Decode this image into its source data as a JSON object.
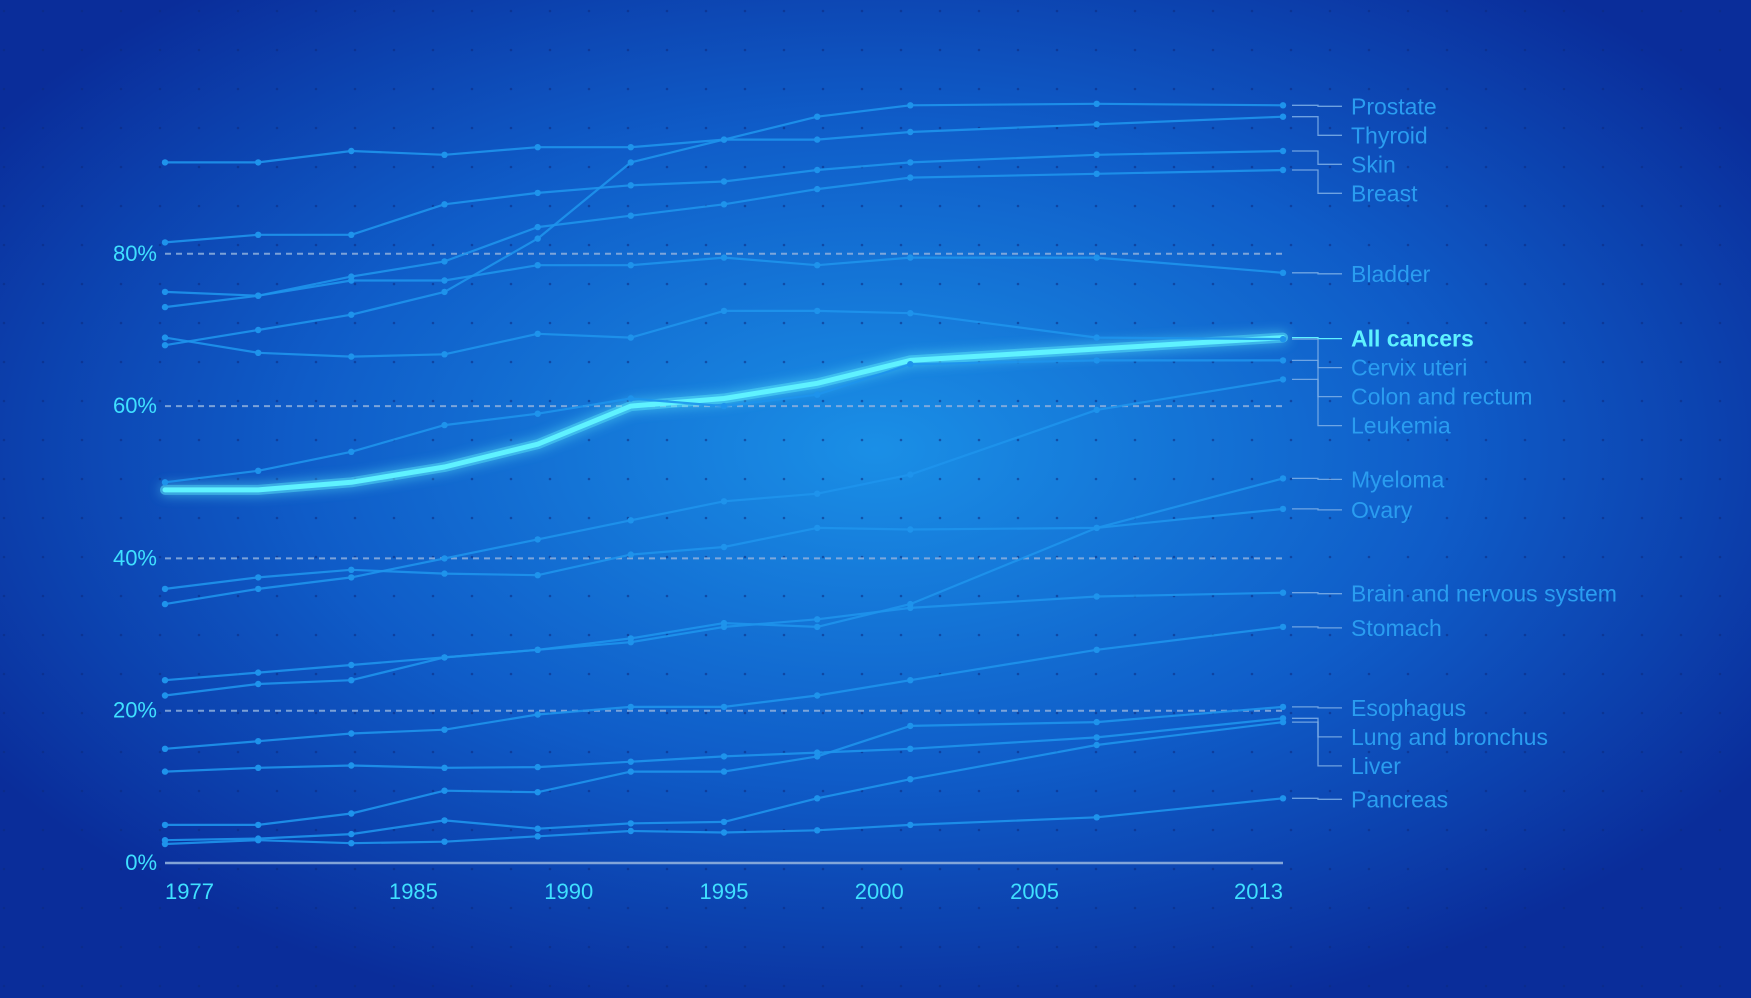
{
  "colors": {
    "bg_center": "#1a8fe6",
    "bg_edge": "#0a2d9a",
    "series": "#1e93ec",
    "label": "#2a9df0",
    "highlight": "#5ff2ff",
    "tick": "#3fe0ff",
    "grid": "#8fb0dd"
  },
  "chart_data": {
    "type": "line",
    "title": "",
    "xlabel": "",
    "ylabel": "",
    "x_ticks": [
      1977,
      1985,
      1990,
      1995,
      2000,
      2005,
      2013
    ],
    "x_tick_labels": [
      "1977",
      "1985",
      "1990",
      "1995",
      "2000",
      "2005",
      "2013"
    ],
    "y_ticks": [
      0,
      20,
      40,
      60,
      80
    ],
    "y_tick_labels": [
      "0%",
      "20%",
      "40%",
      "60%",
      "80%"
    ],
    "xlim": [
      1977,
      2013
    ],
    "ylim": [
      0,
      100
    ],
    "grid": "dashed horizontal at 20%, 40%, 60%, 80%",
    "x": [
      1977,
      1980,
      1983,
      1986,
      1989,
      1992,
      1995,
      1998,
      2001,
      2007,
      2013
    ],
    "series": [
      {
        "name": "Prostate",
        "highlight": false,
        "values": [
          68,
          70,
          72,
          75,
          82,
          92,
          95,
          98,
          99.5,
          99.7,
          99.5
        ]
      },
      {
        "name": "Thyroid",
        "highlight": false,
        "values": [
          92,
          92,
          93.5,
          93,
          94,
          94,
          95,
          95,
          96,
          97,
          98
        ]
      },
      {
        "name": "Skin",
        "highlight": false,
        "values": [
          81.5,
          82.5,
          82.5,
          86.5,
          88,
          89,
          89.5,
          91,
          92,
          93,
          93.5
        ]
      },
      {
        "name": "Breast",
        "highlight": false,
        "values": [
          75,
          74.5,
          77,
          79,
          83.5,
          85,
          86.5,
          88.5,
          90,
          90.5,
          91
        ]
      },
      {
        "name": "Bladder",
        "highlight": false,
        "values": [
          73,
          74.5,
          76.5,
          76.5,
          78.5,
          78.5,
          79.5,
          78.5,
          79.5,
          79.5,
          77.5
        ]
      },
      {
        "name": "All cancers",
        "highlight": true,
        "values": [
          49,
          49,
          50,
          52,
          55,
          60,
          61,
          63,
          66,
          67.5,
          69
        ]
      },
      {
        "name": "Cervix uteri",
        "highlight": false,
        "values": [
          69,
          67,
          66.5,
          66.8,
          69.5,
          69,
          72.5,
          72.5,
          72.2,
          69,
          68.8
        ]
      },
      {
        "name": "Colon and rectum",
        "highlight": false,
        "values": [
          50,
          51.5,
          54,
          57.5,
          59,
          61,
          60,
          61.5,
          65.5,
          66,
          66
        ]
      },
      {
        "name": "Leukemia",
        "highlight": false,
        "values": [
          34,
          36,
          37.5,
          40,
          42.5,
          45,
          47.5,
          48.5,
          51,
          59.5,
          63.5
        ]
      },
      {
        "name": "Myeloma",
        "highlight": false,
        "values": [
          24,
          25,
          26,
          27,
          28,
          29.5,
          31.5,
          31,
          34,
          44,
          50.5
        ]
      },
      {
        "name": "Ovary",
        "highlight": false,
        "values": [
          36,
          37.5,
          38.5,
          38,
          37.8,
          40.5,
          41.5,
          44,
          43.8,
          44,
          46.5
        ]
      },
      {
        "name": "Brain and nervous system",
        "highlight": false,
        "values": [
          22,
          23.5,
          24,
          27,
          28,
          29,
          31,
          32,
          33.5,
          35,
          35.5
        ]
      },
      {
        "name": "Stomach",
        "highlight": false,
        "values": [
          15,
          16,
          17,
          17.5,
          19.5,
          20.5,
          20.5,
          22,
          24,
          28,
          31
        ]
      },
      {
        "name": "Esophagus",
        "highlight": false,
        "values": [
          5,
          5,
          6.5,
          9.5,
          9.3,
          12,
          12,
          14,
          18,
          18.5,
          20.5
        ]
      },
      {
        "name": "Lung and bronchus",
        "highlight": false,
        "values": [
          12,
          12.5,
          12.8,
          12.5,
          12.6,
          13.3,
          14,
          14.5,
          15,
          16.5,
          19
        ]
      },
      {
        "name": "Liver",
        "highlight": false,
        "values": [
          3,
          3.2,
          3.8,
          5.6,
          4.5,
          5.2,
          5.4,
          8.5,
          11,
          15.5,
          18.5
        ]
      },
      {
        "name": "Pancreas",
        "highlight": false,
        "values": [
          2.5,
          3,
          2.6,
          2.8,
          3.5,
          4.2,
          4,
          4.3,
          5,
          6,
          8.5
        ]
      }
    ]
  }
}
